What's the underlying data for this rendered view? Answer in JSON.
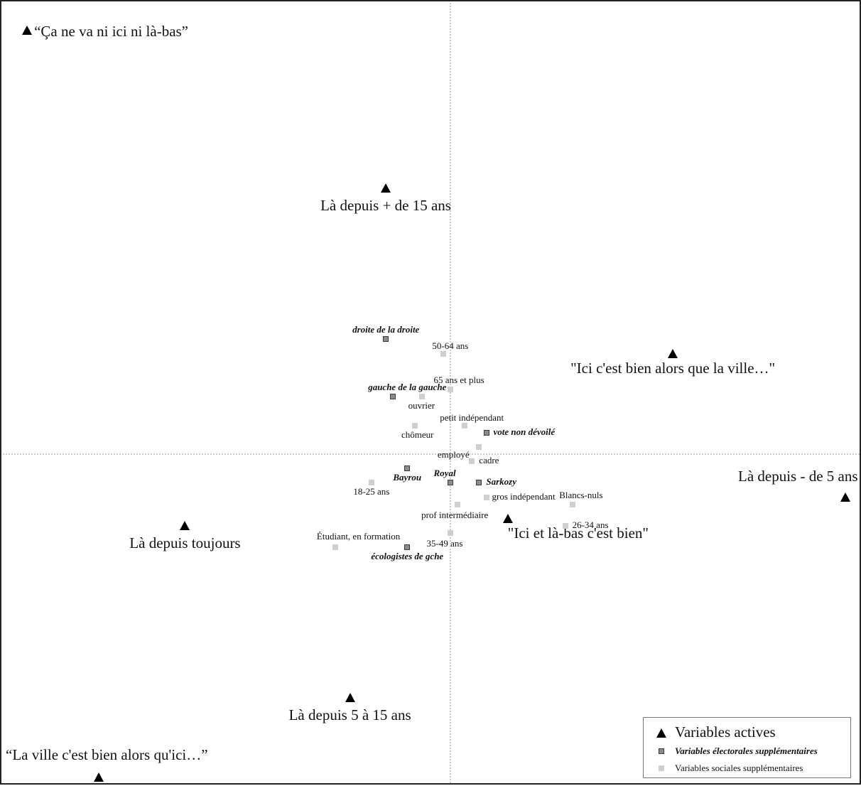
{
  "chart_data": {
    "type": "scatter",
    "title": "",
    "xlabel": "",
    "ylabel": "",
    "grid": false,
    "axes_lines": "dashed lines at x=0 and y=0",
    "legend_position": "bottom-right",
    "legend": {
      "active": "Variables actives",
      "electoral": "Variables électorales supplémentaires",
      "social": "Variables sociales supplémentaires"
    },
    "series": [
      {
        "name": "Variables actives",
        "marker": "triangle",
        "points": [
          {
            "label": "“Ça ne va ni ici ni là-bas”",
            "x": -5.9,
            "y": 5.9
          },
          {
            "label": "Là depuis + de 15 ans",
            "x": -0.9,
            "y": 3.7
          },
          {
            "label": "\"Ici c'est bien alors que la ville…\"",
            "x": 3.1,
            "y": 1.4
          },
          {
            "label": "Là depuis - de 5 ans",
            "x": 5.5,
            "y": -0.6
          },
          {
            "label": "Là depuis toujours",
            "x": -3.7,
            "y": -1.0
          },
          {
            "label": "\"Ici et là-bas c'est bien\"",
            "x": 0.8,
            "y": -0.9
          },
          {
            "label": "Là depuis 5 à 15 ans",
            "x": -1.4,
            "y": -3.4
          },
          {
            "label": "“La ville c'est bien alors qu'ici…”",
            "x": -4.9,
            "y": -4.5
          }
        ]
      },
      {
        "name": "Variables électorales supplémentaires",
        "marker": "square-dark",
        "points": [
          {
            "label": "droite de la droite",
            "x": -0.9,
            "y": 1.6
          },
          {
            "label": "gauche de la gauche",
            "x": -0.8,
            "y": 0.8
          },
          {
            "label": "vote non dévoilé",
            "x": 0.5,
            "y": 0.3
          },
          {
            "label": "Bayrou",
            "x": -0.6,
            "y": -0.2
          },
          {
            "label": "Royal",
            "x": 0.0,
            "y": -0.4
          },
          {
            "label": "Sarkozy",
            "x": 0.4,
            "y": -0.4
          },
          {
            "label": "écologistes de gche",
            "x": -0.6,
            "y": -1.3
          }
        ]
      },
      {
        "name": "Variables sociales supplémentaires",
        "marker": "square-light",
        "points": [
          {
            "label": "50-64 ans",
            "x": -0.1,
            "y": 1.4
          },
          {
            "label": "65 ans et plus",
            "x": 0.0,
            "y": 0.9
          },
          {
            "label": "ouvrier",
            "x": -0.4,
            "y": 0.8
          },
          {
            "label": "petit indépendant",
            "x": 0.2,
            "y": 0.4
          },
          {
            "label": "chômeur",
            "x": -0.5,
            "y": 0.4
          },
          {
            "label": "employé",
            "x": 0.4,
            "y": 0.1
          },
          {
            "label": "cadre",
            "x": 0.3,
            "y": -0.1
          },
          {
            "label": "18-25 ans",
            "x": -1.1,
            "y": -0.4
          },
          {
            "label": "gros indépendant",
            "x": 0.5,
            "y": -0.6
          },
          {
            "label": "prof intermédiaire",
            "x": 0.1,
            "y": -0.7
          },
          {
            "label": "Blancs-nuls",
            "x": 1.7,
            "y": -0.7
          },
          {
            "label": "26-34 ans",
            "x": 1.6,
            "y": -1.0
          },
          {
            "label": "35-49 ans",
            "x": 0.0,
            "y": -1.1
          },
          {
            "label": "Étudiant, en formation",
            "x": -1.6,
            "y": -1.3
          }
        ]
      }
    ]
  }
}
